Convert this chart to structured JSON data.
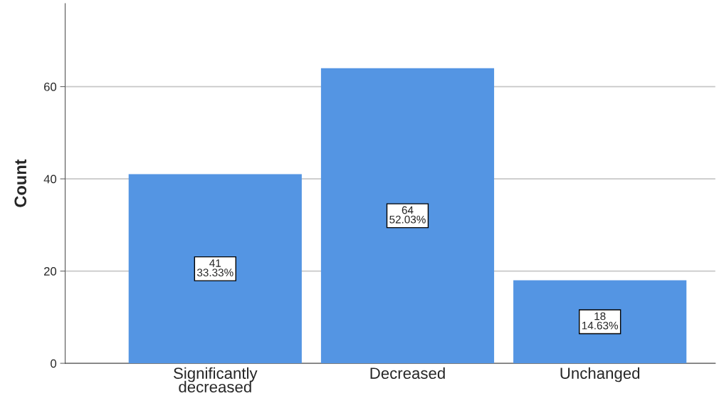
{
  "chart_data": {
    "type": "bar",
    "ylabel": "Count",
    "categories": [
      "Significantly\ndecreased",
      "Decreased",
      "Unchanged"
    ],
    "values": [
      41,
      64,
      18
    ],
    "value_labels": [
      "41\n33.33%",
      "64\n52.03%",
      "18\n14.63%"
    ],
    "color": "#5495e3",
    "ylim": [
      0,
      78
    ],
    "yticks": [
      0,
      20,
      40,
      60
    ],
    "grid": "y",
    "legend": false
  }
}
